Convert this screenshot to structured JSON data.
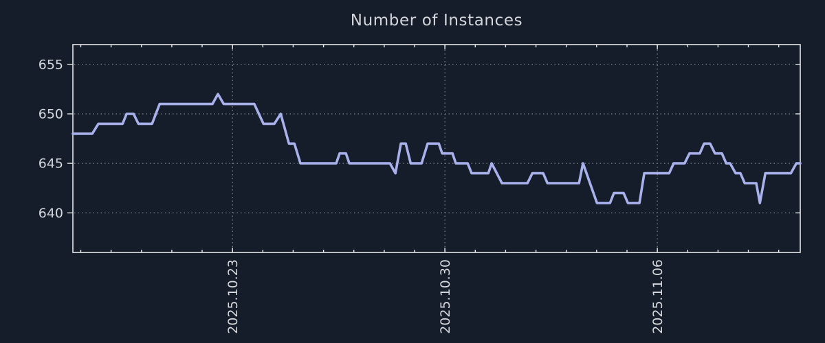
{
  "title": "Number of Instances",
  "colors": {
    "background": "#161d2a",
    "line": "#a9b1ec",
    "axis_border": "#e5e7ea",
    "grid": "#99a0aa",
    "text": "#d5d8dc"
  },
  "chart_data": {
    "type": "line",
    "title": "Number of Instances",
    "xlabel": "",
    "ylabel": "",
    "grid": true,
    "legend": false,
    "x_axis": {
      "unit": "days relative to 2025.10.23",
      "range": [
        -5.26,
        18.71
      ],
      "minor_tick_interval_days": 1,
      "major_ticks": [
        {
          "day": 0,
          "label": "2025.10.23"
        },
        {
          "day": 7,
          "label": "2025.10.30"
        },
        {
          "day": 14,
          "label": "2025.11.06"
        }
      ]
    },
    "y_axis": {
      "range": [
        636,
        657
      ],
      "ticks": [
        640,
        645,
        650,
        655
      ]
    },
    "series": [
      {
        "name": "instances",
        "color": "#a9b1ec",
        "points": [
          [
            -5.26,
            648
          ],
          [
            -4.62,
            648
          ],
          [
            -4.42,
            649
          ],
          [
            -3.62,
            649
          ],
          [
            -3.49,
            650
          ],
          [
            -3.26,
            650
          ],
          [
            -3.1,
            649
          ],
          [
            -2.65,
            649
          ],
          [
            -2.4,
            651
          ],
          [
            -0.66,
            651
          ],
          [
            -0.48,
            652
          ],
          [
            -0.29,
            651
          ],
          [
            0.72,
            651
          ],
          [
            1.02,
            649
          ],
          [
            1.38,
            649
          ],
          [
            1.59,
            650
          ],
          [
            1.86,
            647
          ],
          [
            2.04,
            647
          ],
          [
            2.24,
            645
          ],
          [
            3.42,
            645
          ],
          [
            3.53,
            646
          ],
          [
            3.74,
            646
          ],
          [
            3.85,
            645
          ],
          [
            5.19,
            645
          ],
          [
            5.37,
            644
          ],
          [
            5.55,
            647
          ],
          [
            5.71,
            647
          ],
          [
            5.87,
            645
          ],
          [
            6.23,
            645
          ],
          [
            6.43,
            647
          ],
          [
            6.8,
            647
          ],
          [
            6.91,
            646
          ],
          [
            7.25,
            646
          ],
          [
            7.36,
            645
          ],
          [
            7.75,
            645
          ],
          [
            7.88,
            644
          ],
          [
            8.43,
            644
          ],
          [
            8.54,
            645
          ],
          [
            8.88,
            643
          ],
          [
            9.72,
            643
          ],
          [
            9.88,
            644
          ],
          [
            10.24,
            644
          ],
          [
            10.38,
            643
          ],
          [
            11.42,
            643
          ],
          [
            11.55,
            645
          ],
          [
            12.01,
            641
          ],
          [
            12.44,
            641
          ],
          [
            12.57,
            642
          ],
          [
            12.89,
            642
          ],
          [
            13.03,
            641
          ],
          [
            13.41,
            641
          ],
          [
            13.57,
            644
          ],
          [
            14.39,
            644
          ],
          [
            14.54,
            645
          ],
          [
            14.9,
            645
          ],
          [
            15.06,
            646
          ],
          [
            15.4,
            646
          ],
          [
            15.54,
            647
          ],
          [
            15.74,
            647
          ],
          [
            15.9,
            646
          ],
          [
            16.13,
            646
          ],
          [
            16.27,
            645
          ],
          [
            16.4,
            645
          ],
          [
            16.58,
            644
          ],
          [
            16.74,
            644
          ],
          [
            16.88,
            643
          ],
          [
            17.26,
            643
          ],
          [
            17.38,
            641
          ],
          [
            17.56,
            644
          ],
          [
            18.4,
            644
          ],
          [
            18.58,
            645
          ],
          [
            18.71,
            645
          ]
        ]
      }
    ]
  }
}
